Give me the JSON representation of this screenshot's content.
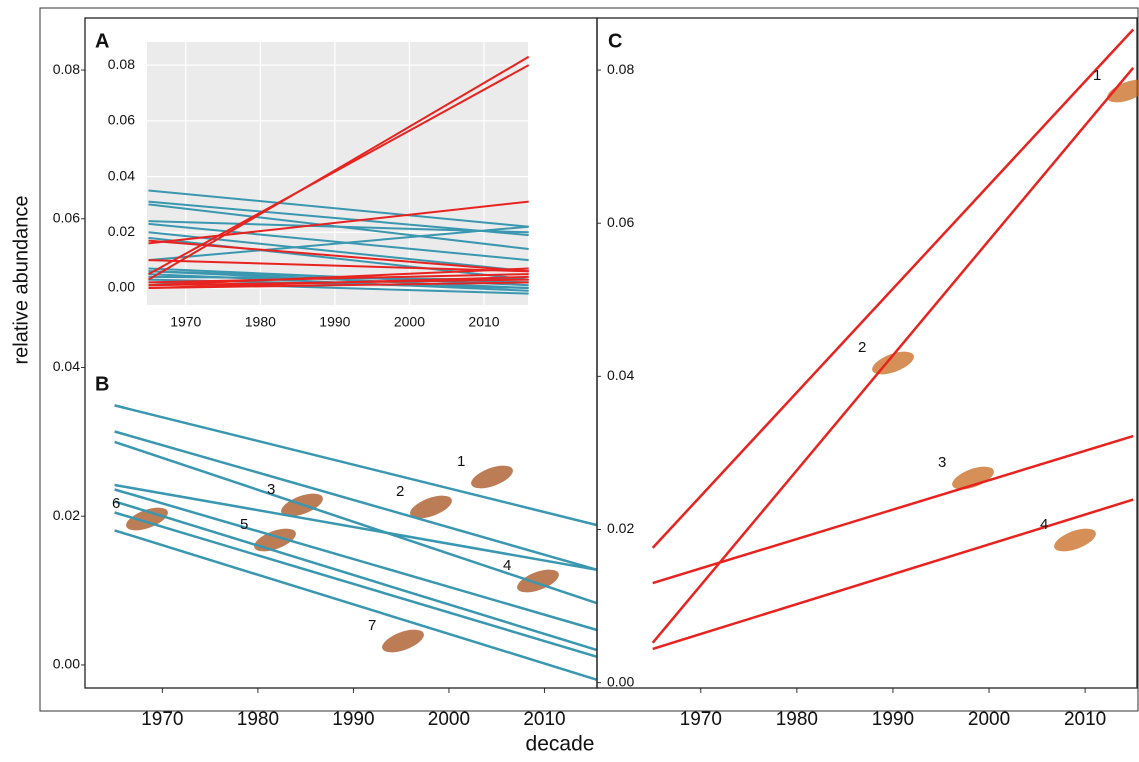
{
  "chart_data": [
    {
      "type": "line",
      "label": "A",
      "x": [
        1965,
        2016
      ],
      "xlim": [
        1964.8,
        2015.9
      ],
      "ylim": [
        -0.0061,
        0.0883
      ],
      "xticks": [
        1970,
        1980,
        1990,
        2000,
        2010
      ],
      "yticks": [
        {
          "value": 0,
          "label": "0.00"
        },
        0.02,
        0.04,
        0.06,
        0.08
      ],
      "grid": true,
      "series": [
        {
          "color": "#3a97b0",
          "values": [
            0.035,
            0.022
          ]
        },
        {
          "color": "#3a97b0",
          "values": [
            0.031,
            0.019
          ]
        },
        {
          "color": "#3a97b0",
          "values": [
            0.03,
            0.014
          ]
        },
        {
          "color": "#3a97b0",
          "values": [
            0.024,
            0.02
          ]
        },
        {
          "color": "#3a97b0",
          "values": [
            0.023,
            0.01
          ]
        },
        {
          "color": "#3a97b0",
          "values": [
            0.02,
            0.006
          ]
        },
        {
          "color": "#3a97b0",
          "values": [
            0.018,
            0.003
          ]
        },
        {
          "color": "#3a97b0",
          "values": [
            0.01,
            0.022
          ]
        },
        {
          "color": "#3a97b0",
          "values": [
            0.007,
            0.001
          ]
        },
        {
          "color": "#3a97b0",
          "values": [
            0.006,
            0.0
          ]
        },
        {
          "color": "#3a97b0",
          "values": [
            0.005,
            -0.001
          ]
        },
        {
          "color": "#3a97b0",
          "values": [
            0.004,
            0.003
          ]
        },
        {
          "color": "#3a97b0",
          "values": [
            0.003,
            0.0
          ]
        },
        {
          "color": "#3a97b0",
          "values": [
            0.002,
            -0.002
          ]
        },
        {
          "color": "#3a97b0",
          "values": [
            0.006,
            0.002
          ]
        },
        {
          "color": "#e8231f",
          "values": [
            0.003,
            0.083
          ]
        },
        {
          "color": "#e8231f",
          "values": [
            0.005,
            0.08
          ]
        },
        {
          "color": "#e8231f",
          "values": [
            0.016,
            0.031
          ]
        },
        {
          "color": "#e8231f",
          "values": [
            0.017,
            0.006
          ]
        },
        {
          "color": "#e8231f",
          "values": [
            0.01,
            0.006
          ]
        },
        {
          "color": "#e8231f",
          "values": [
            0.001,
            0.007
          ]
        },
        {
          "color": "#e8231f",
          "values": [
            0.0,
            0.004
          ]
        },
        {
          "color": "#e8231f",
          "values": [
            0.001,
            0.003
          ]
        },
        {
          "color": "#e8231f",
          "values": [
            0.002,
            0.005
          ]
        },
        {
          "color": "#e8231f",
          "values": [
            0.0,
            0.002
          ]
        }
      ]
    },
    {
      "type": "line",
      "label": "B",
      "ylabel": "relative abundance",
      "xlabel": "decade",
      "x": [
        1965,
        2015.5
      ],
      "xlim": [
        1961.9,
        2015.5
      ],
      "ylim": [
        -0.0031,
        0.087
      ],
      "xticks": [
        1970,
        1980,
        1990,
        2000,
        2010
      ],
      "yticks": [
        {
          "value": 0,
          "label": "0.00"
        },
        0.02,
        0.04,
        0.06,
        0.08
      ],
      "color": "#3a97b0",
      "series": [
        {
          "values": [
            0.0349,
            0.0188
          ]
        },
        {
          "values": [
            0.0314,
            0.0128
          ]
        },
        {
          "values": [
            0.03,
            0.0083
          ]
        },
        {
          "values": [
            0.0242,
            0.0128
          ]
        },
        {
          "values": [
            0.0236,
            0.0047
          ]
        },
        {
          "values": [
            0.022,
            0.002
          ]
        },
        {
          "values": [
            0.0205,
            0.0011
          ]
        },
        {
          "values": [
            0.0181,
            -0.002
          ]
        }
      ],
      "annotations": [
        "1",
        "2",
        "3",
        "4",
        "5",
        "6",
        "7"
      ]
    },
    {
      "type": "line",
      "label": "C",
      "x": [
        1965,
        2015
      ],
      "xlim": [
        1959.2,
        2015.4
      ],
      "ylim": [
        -0.0007,
        0.0868
      ],
      "xticks": [
        1970,
        1980,
        1990,
        2000,
        2010
      ],
      "yticks": [
        {
          "value": 0,
          "label": "0.00"
        },
        0.02,
        0.04,
        0.06,
        0.08
      ],
      "color": "#e8231f",
      "series": [
        {
          "values": [
            0.0176,
            0.0853
          ]
        },
        {
          "values": [
            0.0052,
            0.0803
          ]
        },
        {
          "values": [
            0.013,
            0.0322
          ]
        },
        {
          "values": [
            0.0044,
            0.0239
          ]
        }
      ],
      "annotations": [
        "1",
        "2",
        "3",
        "4"
      ]
    }
  ]
}
